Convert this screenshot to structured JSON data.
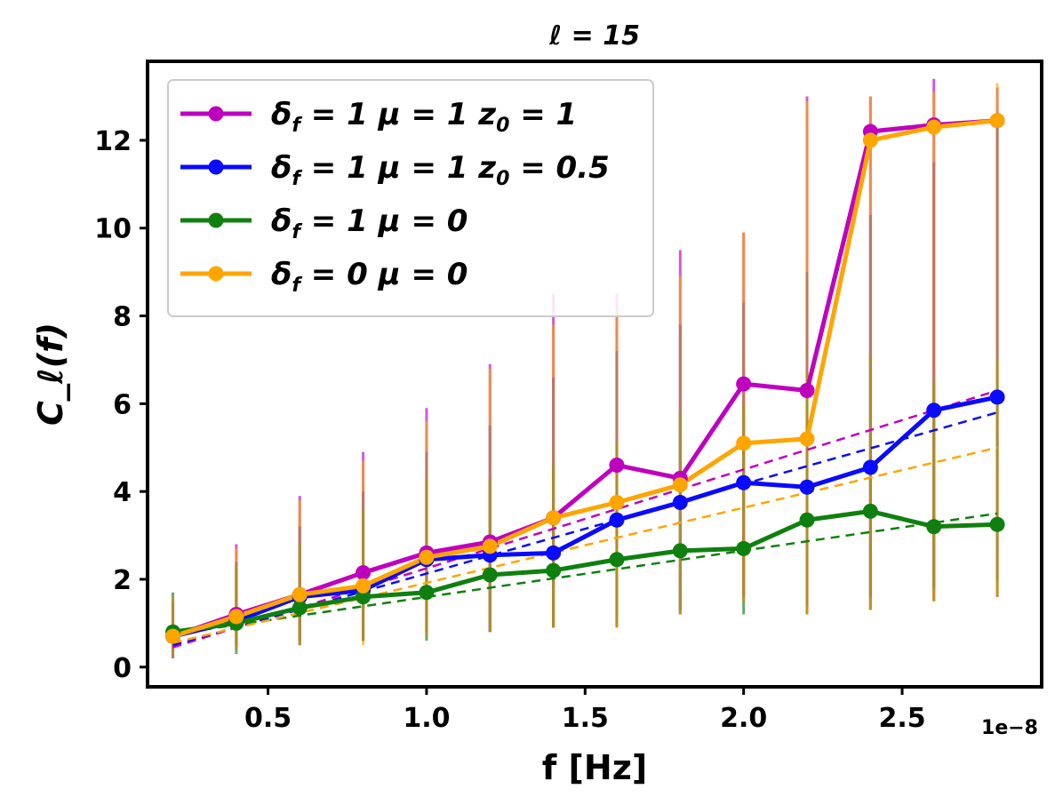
{
  "chart_data": {
    "type": "line",
    "title": "ℓ = 15",
    "xlabel": "f [Hz]",
    "ylabel": "C_ℓ(f)",
    "x_offset_label": "1e−8",
    "xlim": [
      0.12,
      2.94
    ],
    "ylim": [
      -0.45,
      13.8
    ],
    "x_ticks": [
      0.5,
      1.0,
      1.5,
      2.0,
      2.5
    ],
    "x_tick_labels": [
      "0.5",
      "1.0",
      "1.5",
      "2.0",
      "2.5"
    ],
    "y_ticks": [
      0,
      2,
      4,
      6,
      8,
      10,
      12
    ],
    "y_tick_labels": [
      "0",
      "2",
      "4",
      "6",
      "8",
      "10",
      "12"
    ],
    "x": [
      0.2,
      0.4,
      0.6,
      0.8,
      1.0,
      1.2,
      1.4,
      1.6,
      1.8,
      2.0,
      2.2,
      2.4,
      2.6,
      2.8
    ],
    "legend_position": "upper-left",
    "series": [
      {
        "name": "δf = 1 μ = 1 z0 = 1",
        "legend_parts": {
          "a": "δ",
          "a_sub": "f",
          "b": " = 1 μ = 1 ",
          "c": "z",
          "c_sub": "0",
          "d": " = 1"
        },
        "color": "#bf00bf",
        "values": [
          0.7,
          1.2,
          1.65,
          2.15,
          2.6,
          2.85,
          3.4,
          4.6,
          4.3,
          6.45,
          6.3,
          12.2,
          12.35,
          12.45
        ],
        "error_upper": [
          1.6,
          2.8,
          3.9,
          4.9,
          5.9,
          6.9,
          8.5,
          8.5,
          9.5,
          9.9,
          13.0,
          13.0,
          13.4,
          13.2
        ],
        "error_lower": [
          0.2,
          0.5,
          0.6,
          0.6,
          0.8,
          0.8,
          0.9,
          0.9,
          1.2,
          1.5,
          1.2,
          1.3,
          1.5,
          1.6
        ],
        "fit": [
          0.45,
          5.6,
          6.3
        ]
      },
      {
        "name": "δf = 1 μ = 1 z0 = 0.5",
        "legend_parts": {
          "a": "δ",
          "a_sub": "f",
          "b": " = 1 μ = 1 ",
          "c": "z",
          "c_sub": "0",
          "d": " = 0.5"
        },
        "color": "#0a0aff",
        "values": [
          0.7,
          1.05,
          1.6,
          1.75,
          2.45,
          2.55,
          2.6,
          3.35,
          3.75,
          4.2,
          4.1,
          4.55,
          5.85,
          6.15
        ],
        "error_upper": [
          1.5,
          2.4,
          3.2,
          4.0,
          4.9,
          5.5,
          6.6,
          7.2,
          7.8,
          8.3,
          9.0,
          10.3,
          11.5,
          12.5
        ],
        "error_lower": [
          0.2,
          0.4,
          0.5,
          0.6,
          0.7,
          0.8,
          0.9,
          1.0,
          1.3,
          1.6,
          1.4,
          1.6,
          1.8,
          2.0
        ],
        "fit": [
          0.5,
          5.8,
          5.8
        ]
      },
      {
        "name": "δf = 1 μ = 0",
        "legend_parts": {
          "a": "δ",
          "a_sub": "f",
          "b": " = 1 μ = 0",
          "c": "",
          "c_sub": "",
          "d": ""
        },
        "color": "#0f800f",
        "values": [
          0.8,
          1.0,
          1.35,
          1.6,
          1.7,
          2.1,
          2.2,
          2.45,
          2.65,
          2.7,
          3.35,
          3.55,
          3.2,
          3.25
        ],
        "error_upper": [
          1.7,
          2.3,
          2.8,
          3.6,
          4.3,
          4.3,
          4.6,
          5.1,
          5.8,
          6.0,
          6.7,
          7.1,
          6.5,
          7.0
        ],
        "error_lower": [
          0.3,
          0.3,
          0.5,
          0.6,
          0.6,
          0.8,
          0.9,
          0.9,
          1.2,
          1.2,
          1.2,
          1.3,
          1.5,
          1.6
        ],
        "fit": [
          0.75,
          3.5,
          3.5
        ]
      },
      {
        "name": "δf = 0 μ = 0",
        "legend_parts": {
          "a": "δ",
          "a_sub": "f",
          "b": " = 0 μ = 0",
          "c": "",
          "c_sub": "",
          "d": ""
        },
        "color": "#ffa500",
        "values": [
          0.7,
          1.15,
          1.65,
          1.85,
          2.5,
          2.75,
          3.4,
          3.75,
          4.15,
          5.1,
          5.2,
          12.0,
          12.3,
          12.45
        ],
        "error_upper": [
          1.6,
          2.7,
          3.8,
          4.7,
          5.6,
          6.8,
          7.8,
          8.1,
          8.9,
          9.9,
          12.9,
          13.0,
          13.1,
          13.3
        ],
        "error_lower": [
          0.2,
          0.4,
          0.5,
          0.5,
          0.7,
          0.8,
          0.9,
          0.9,
          1.2,
          1.5,
          1.2,
          1.3,
          1.5,
          1.6
        ],
        "fit": [
          0.55,
          5.0,
          5.0
        ]
      }
    ]
  }
}
